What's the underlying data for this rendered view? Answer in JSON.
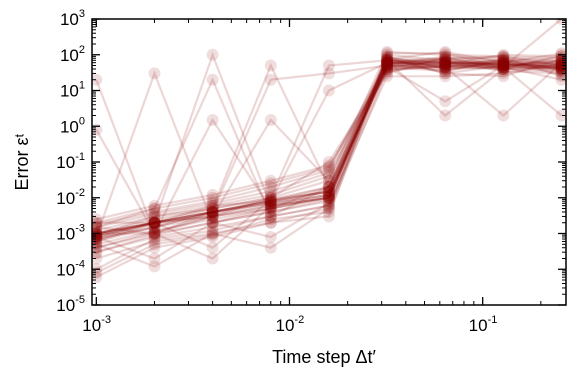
{
  "chart_data": {
    "type": "line",
    "title": "",
    "xlabel": "Time step Δt′",
    "ylabel": "Error εᵗ",
    "xscale": "log",
    "yscale": "log",
    "xlim": [
      0.00095,
      0.27
    ],
    "ylim": [
      1e-05,
      1000
    ],
    "grid": false,
    "legend": "none",
    "series_color": "#8b0000",
    "x": [
      0.001,
      0.002,
      0.004,
      0.008,
      0.016,
      0.032,
      0.064,
      0.128,
      0.256
    ],
    "x_ticks": [
      {
        "value": 0.001,
        "base": "10",
        "exp": "-3"
      },
      {
        "value": 0.01,
        "base": "10",
        "exp": "-2"
      },
      {
        "value": 0.1,
        "base": "10",
        "exp": "-1"
      }
    ],
    "y_ticks": [
      {
        "value": 1e-05,
        "base": "10",
        "exp": "-5"
      },
      {
        "value": 0.0001,
        "base": "10",
        "exp": "-4"
      },
      {
        "value": 0.001,
        "base": "10",
        "exp": "-3"
      },
      {
        "value": 0.01,
        "base": "10",
        "exp": "-2"
      },
      {
        "value": 0.1,
        "base": "10",
        "exp": "-1"
      },
      {
        "value": 1,
        "base": "10",
        "exp": "0"
      },
      {
        "value": 10,
        "base": "10",
        "exp": "1"
      },
      {
        "value": 100,
        "base": "10",
        "exp": "2"
      },
      {
        "value": 1000,
        "base": "10",
        "exp": "3"
      }
    ],
    "series": [
      {
        "values": [
          0.0002,
          0.0006,
          0.001,
          0.002,
          0.005,
          60,
          50,
          40,
          35
        ]
      },
      {
        "values": [
          0.0003,
          0.0008,
          0.0015,
          0.003,
          0.006,
          80,
          60,
          55,
          45
        ]
      },
      {
        "values": [
          0.0004,
          0.001,
          0.002,
          0.004,
          0.008,
          100,
          70,
          65,
          60
        ]
      },
      {
        "values": [
          0.0005,
          0.0012,
          0.0025,
          0.005,
          0.01,
          70,
          80,
          50,
          40
        ]
      },
      {
        "values": [
          0.0006,
          0.0015,
          0.003,
          0.006,
          0.012,
          50,
          90,
          70,
          55
        ]
      },
      {
        "values": [
          0.0007,
          0.0018,
          0.0035,
          0.007,
          0.015,
          40,
          45,
          80,
          70
        ]
      },
      {
        "values": [
          0.0008,
          0.002,
          0.004,
          0.008,
          0.02,
          90,
          40,
          45,
          50
        ]
      },
      {
        "values": [
          0.001,
          0.0025,
          0.005,
          0.01,
          0.03,
          120,
          100,
          90,
          80
        ]
      },
      {
        "values": [
          0.0012,
          0.003,
          0.006,
          0.012,
          0.04,
          60,
          55,
          100,
          90
        ]
      },
      {
        "values": [
          0.0015,
          0.0035,
          0.007,
          0.015,
          0.05,
          45,
          65,
          35,
          30
        ]
      },
      {
        "values": [
          0.0018,
          0.004,
          0.008,
          0.02,
          0.06,
          75,
          120,
          60,
          45
        ]
      },
      {
        "values": [
          0.002,
          0.005,
          0.01,
          0.025,
          0.07,
          55,
          35,
          75,
          65
        ]
      },
      {
        "values": [
          0.0025,
          0.006,
          0.012,
          0.03,
          0.08,
          30,
          85,
          40,
          100
        ]
      },
      {
        "values": [
          0.0003,
          0.0009,
          0.002,
          0.004,
          0.009,
          65,
          75,
          85,
          25
        ]
      },
      {
        "values": [
          0.0004,
          0.0011,
          0.003,
          0.005,
          0.011,
          85,
          30,
          25,
          75
        ]
      },
      {
        "values": [
          8e-05,
          0.0005,
          0.0009,
          0.0025,
          0.004,
          35,
          50,
          60,
          110
        ]
      },
      {
        "values": [
          6e-05,
          0.0004,
          0.0008,
          0.002,
          0.003,
          110,
          110,
          45,
          20
        ]
      },
      {
        "values": [
          0.0001,
          0.0007,
          0.0012,
          0.003,
          0.006,
          25,
          25,
          30,
          55
        ]
      },
      {
        "values": [
          0.0015,
          0.001,
          0.0002,
          0.006,
          0.01,
          50,
          60,
          65,
          40
        ]
      },
      {
        "values": [
          0.002,
          0.002,
          0.0004,
          0.009,
          0.015,
          70,
          45,
          55,
          45
        ]
      },
      {
        "values": [
          0.0005,
          0.00012,
          0.001,
          0.0004,
          0.005,
          60,
          70,
          50,
          60
        ]
      },
      {
        "values": [
          0.0008,
          0.0002,
          0.002,
          0.0008,
          0.007,
          40,
          80,
          90,
          50
        ]
      },
      {
        "values": [
          0.0008,
          30,
          0.002,
          0.005,
          0.01,
          50,
          40,
          60,
          50
        ]
      },
      {
        "values": [
          0.0015,
          0.005,
          20,
          0.003,
          0.02,
          70,
          60,
          40,
          45
        ]
      },
      {
        "values": [
          0.001,
          0.002,
          100,
          0.006,
          0.01,
          60,
          55,
          65,
          40
        ]
      },
      {
        "values": [
          0.0009,
          0.003,
          0.005,
          50,
          0.02,
          80,
          30,
          50,
          70
        ]
      },
      {
        "values": [
          0.0007,
          0.0015,
          0.004,
          20,
          30,
          50,
          45,
          40,
          90
        ]
      },
      {
        "values": [
          0.0006,
          0.002,
          0.003,
          0.01,
          50,
          70,
          60,
          55,
          30
        ]
      },
      {
        "values": [
          0.0009,
          0.002,
          0.006,
          0.008,
          10,
          60,
          45,
          50,
          65
        ]
      },
      {
        "values": [
          20,
          0.001,
          0.004,
          0.007,
          0.012,
          45,
          35,
          70,
          50
        ]
      },
      {
        "values": [
          0.8,
          0.001,
          0.003,
          0.006,
          0.01,
          55,
          65,
          45,
          40
        ]
      },
      {
        "values": [
          0.001,
          0.001,
          1.5,
          0.005,
          0.02,
          40,
          50,
          60,
          35
        ]
      },
      {
        "values": [
          0.001,
          0.002,
          0.003,
          1.5,
          0.03,
          60,
          70,
          45,
          50
        ]
      },
      {
        "values": [
          0.0008,
          0.002,
          0.005,
          0.01,
          0.1,
          35,
          60,
          55,
          40
        ]
      },
      {
        "values": [
          0.0007,
          0.0015,
          0.004,
          0.009,
          0.02,
          70,
          2,
          40,
          45
        ]
      },
      {
        "values": [
          0.001,
          0.002,
          0.004,
          0.008,
          0.015,
          50,
          45,
          2,
          60
        ]
      },
      {
        "values": [
          0.0009,
          0.002,
          0.004,
          0.007,
          0.012,
          65,
          55,
          45,
          2
        ]
      },
      {
        "values": [
          0.0008,
          0.002,
          0.004,
          0.008,
          0.015,
          45,
          5,
          50,
          55
        ]
      },
      {
        "values": [
          0.001,
          0.002,
          0.004,
          0.008,
          0.015,
          60,
          50,
          45,
          1000
        ]
      }
    ]
  }
}
